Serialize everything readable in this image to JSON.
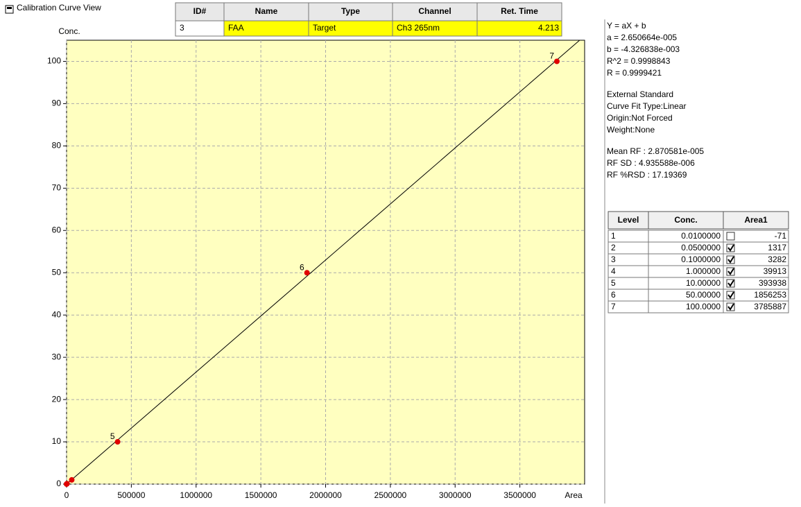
{
  "window": {
    "title": "Calibration Curve View"
  },
  "peak_table": {
    "headers": [
      "ID#",
      "Name",
      "Type",
      "Channel",
      "Ret. Time"
    ],
    "row": [
      "3",
      "FAA",
      "Target",
      "Ch3 265nm",
      "4.213"
    ]
  },
  "chart_data": {
    "type": "scatter",
    "ylabel": "Conc.",
    "xlabel": "Area",
    "x": [
      -71,
      1317,
      3282,
      39913,
      393938,
      1856253,
      3785887
    ],
    "values": [
      0.01,
      0.05,
      0.1,
      1,
      10,
      50,
      100
    ],
    "point_labels": [
      null,
      null,
      null,
      null,
      "5",
      "6",
      "7"
    ],
    "color": "#e00000",
    "fit": {
      "a": 2.650664e-05,
      "b": -0.004326838
    },
    "fit_color": "#000000",
    "xlim": [
      0,
      4000000
    ],
    "ylim": [
      0,
      105
    ],
    "xticks": [
      0,
      500000,
      1000000,
      1500000,
      2000000,
      2500000,
      3000000,
      3500000
    ],
    "yticks": [
      0,
      10,
      20,
      30,
      40,
      50,
      60,
      70,
      80,
      90,
      100
    ],
    "grid": true,
    "background": "#ffffc0"
  },
  "fit_info": [
    "Y = aX + b",
    "a = 2.650664e-005",
    "b = -4.326838e-003",
    "R^2 = 0.9998843",
    "R = 0.9999421"
  ],
  "method_info": [
    "External Standard",
    "Curve Fit Type:Linear",
    "Origin:Not Forced",
    "Weight:None"
  ],
  "rf_info": [
    "Mean RF :  2.870581e-005",
    "RF SD : 4.935588e-006",
    "RF %RSD : 17.19369"
  ],
  "level_table": {
    "headers": [
      "Level",
      "Conc.",
      "Area1"
    ],
    "rows": [
      {
        "level": "1",
        "conc": "0.0100000",
        "checked": false,
        "area": "-71"
      },
      {
        "level": "2",
        "conc": "0.0500000",
        "checked": true,
        "area": "1317"
      },
      {
        "level": "3",
        "conc": "0.1000000",
        "checked": true,
        "area": "3282"
      },
      {
        "level": "4",
        "conc": "1.000000",
        "checked": true,
        "area": "39913"
      },
      {
        "level": "5",
        "conc": "10.00000",
        "checked": true,
        "area": "393938"
      },
      {
        "level": "6",
        "conc": "50.00000",
        "checked": true,
        "area": "1856253"
      },
      {
        "level": "7",
        "conc": "100.0000",
        "checked": true,
        "area": "3785887"
      }
    ]
  }
}
